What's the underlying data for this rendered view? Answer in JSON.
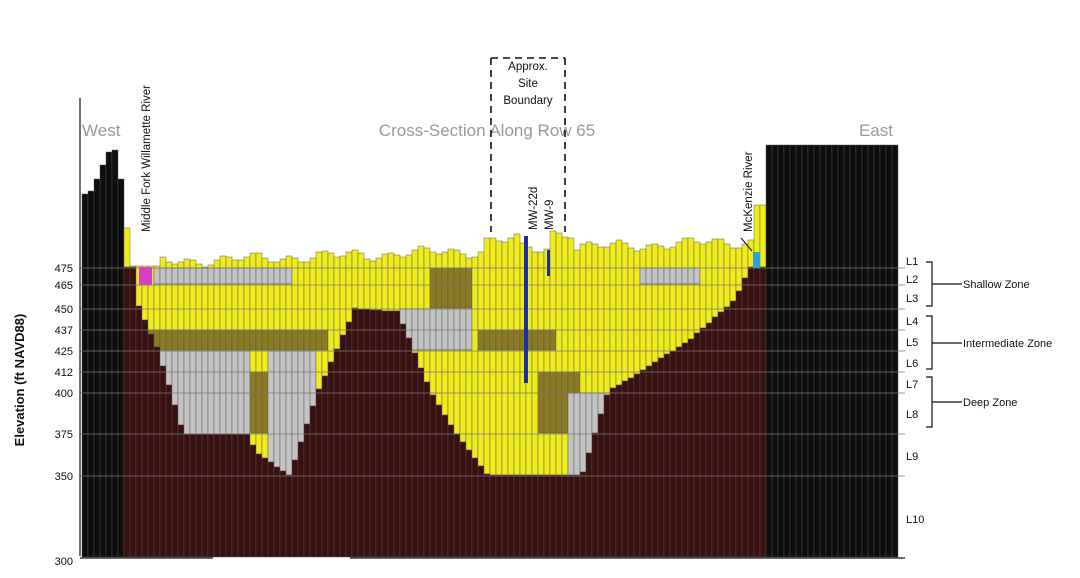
{
  "diagram": {
    "header_left": "West",
    "header_center": "Cross-Section Along Row 65",
    "header_right": "East",
    "y_axis_label": "Elevation (ft NAVD88)",
    "y_ticks": [
      "475",
      "465",
      "450",
      "437",
      "425",
      "412",
      "400",
      "375",
      "350",
      "300"
    ],
    "layers": [
      "L1",
      "L2",
      "L3",
      "L4",
      "L5",
      "L6",
      "L7",
      "L8",
      "L9",
      "L10"
    ],
    "zones": [
      "Shallow Zone",
      "Intermediate Zone",
      "Deep Zone"
    ],
    "annotations": {
      "river_west": "Middle Fork Willamette River",
      "river_east": "McKenzie River",
      "site_boundary": [
        "Approx.",
        "Site",
        "Boundary"
      ],
      "well_1": "MW-22d",
      "well_2": "MW-9"
    },
    "colors": {
      "bedrock": "#3a0f0f",
      "inactive": "#0d0d0d",
      "yellow": "#f0ec1c",
      "olive": "#8c7a22",
      "gray": "#c4c4c4",
      "well": "#1c2f9c",
      "river_west": "#d63fc7",
      "river_east": "#2aa3d8"
    }
  }
}
